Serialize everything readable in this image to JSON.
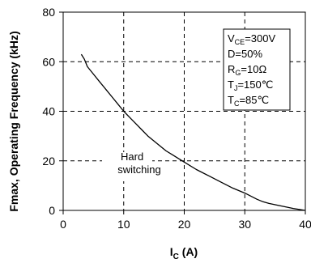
{
  "chart_data": {
    "type": "line",
    "xlabel": {
      "main": "I",
      "sub": "C",
      "suffix": " (A)"
    },
    "ylabel": "Fmax, Operating Frequency (kHz)",
    "xlim": [
      0,
      40
    ],
    "ylim": [
      0,
      80
    ],
    "xticks": [
      "0",
      "10",
      "20",
      "30",
      "40"
    ],
    "yticks": [
      "0",
      "20",
      "40",
      "60",
      "80"
    ],
    "grid": true,
    "grid_style": "dashed",
    "series": [
      {
        "color": "#000000",
        "x": [
          3.0,
          3.5,
          4.0,
          5.0,
          6.0,
          7.0,
          8.0,
          9.0,
          10.0,
          11.0,
          12.0,
          13.0,
          14.0,
          15.0,
          16.0,
          17.0,
          18.0,
          19.0,
          20.0,
          22.0,
          24.0,
          26.0,
          28.0,
          30.0,
          32.0,
          33.0,
          34.0,
          36.0,
          38.0,
          40.0
        ],
        "y": [
          63.0,
          61.0,
          58.0,
          55.0,
          52.0,
          49.0,
          46.0,
          43.0,
          40.0,
          37.5,
          35.0,
          32.5,
          30.0,
          28.0,
          26.0,
          24.0,
          22.5,
          21.0,
          19.5,
          16.5,
          14.0,
          11.5,
          9.0,
          7.0,
          4.5,
          3.5,
          2.8,
          1.8,
          0.8,
          0.0
        ]
      }
    ],
    "annotations": [
      {
        "id": "hard",
        "text": "Hard",
        "x": 9.5,
        "y": 20.2
      },
      {
        "id": "switching",
        "text": "switching",
        "x": 9.0,
        "y": 15.0
      }
    ],
    "conditions_box": {
      "lines": [
        {
          "main": "V",
          "sub": "CE",
          "rest": "=300V"
        },
        {
          "main": "D=50%",
          "sub": "",
          "rest": ""
        },
        {
          "main": "R",
          "sub": "G",
          "rest": "=10Ω"
        },
        {
          "main": "T",
          "sub": "J",
          "rest": "=150℃"
        },
        {
          "main": "T",
          "sub": "C",
          "rest": "=85℃"
        }
      ]
    }
  }
}
